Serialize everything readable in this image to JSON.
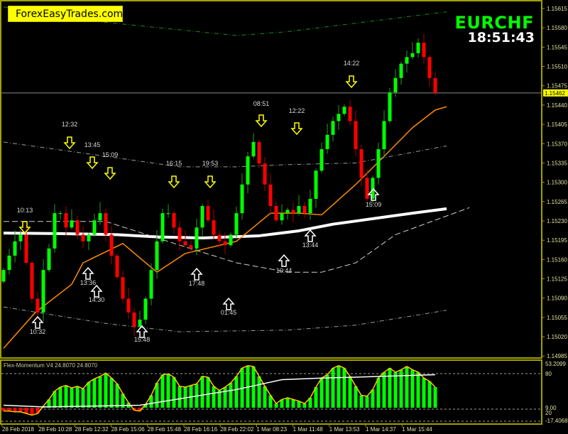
{
  "branding": {
    "label": "ForexEasyTrades.com"
  },
  "header": {
    "symbol": "EURCHF",
    "countdown": "18:51:43"
  },
  "colors": {
    "bull": "#00ff00",
    "bear": "#ff0000",
    "axis": "#a0a000",
    "ma_slow": "#ffffff",
    "ma_fast": "#ff8c00",
    "band_outer": "#1a8a1a",
    "band_inner": "#9a9a9a",
    "signal_down": "#ffff00",
    "signal_up": "#ffffff",
    "histogram_outline": "#ffcc00"
  },
  "chart_data": [
    {
      "type": "candlestick",
      "symbol": "EURCHF",
      "current_price": "1.15462",
      "ylim": [
        1.14985,
        1.15615
      ],
      "y_ticks": [
        "1.15615",
        "1.15580",
        "1.15545",
        "1.15510",
        "1.15475",
        "1.15440",
        "1.15405",
        "1.15370",
        "1.15335",
        "1.15300",
        "1.15265",
        "1.15230",
        "1.15195",
        "1.15160",
        "1.15125",
        "1.15090",
        "1.15055",
        "1.15020",
        "1.14985"
      ],
      "x_ticks": [
        "28 Feb 2018",
        "28 Feb 10:28",
        "28 Feb 12:32",
        "28 Feb 15:06",
        "28 Feb 15:48",
        "28 Feb 16:16",
        "28 Feb 22:02",
        "1 Mar 08:23",
        "1 Mar 11:48",
        "1 Mar 13:53",
        "1 Mar 14:37",
        "1 Mar 15:44"
      ],
      "first_open": 1.1512,
      "closes": [
        1.15141,
        1.15167,
        1.15193,
        1.15205,
        1.15154,
        1.15089,
        1.15064,
        1.15141,
        1.1518,
        1.15244,
        1.15244,
        1.15218,
        1.15231,
        1.15205,
        1.15193,
        1.15205,
        1.15231,
        1.15244,
        1.15205,
        1.15167,
        1.15128,
        1.15089,
        1.15064,
        1.15038,
        1.15051,
        1.15089,
        1.15141,
        1.15193,
        1.15244,
        1.15244,
        1.15218,
        1.15193,
        1.15186,
        1.1518,
        1.15218,
        1.15257,
        1.15231,
        1.15205,
        1.15193,
        1.15186,
        1.15205,
        1.15244,
        1.15296,
        1.15347,
        1.15373,
        1.15334,
        1.15296,
        1.15257,
        1.15231,
        1.15244,
        1.1525,
        1.15244,
        1.15257,
        1.15244,
        1.1527,
        1.15321,
        1.1536,
        1.15386,
        1.15411,
        1.15424,
        1.15437,
        1.15411,
        1.1536,
        1.15308,
        1.1527,
        1.15308,
        1.1536,
        1.15411,
        1.15463,
        1.15489,
        1.15515,
        1.15527,
        1.15534,
        1.15553,
        1.15527,
        1.15489,
        1.15462
      ],
      "lines": [
        {
          "role": "ma_slow",
          "points": [
            [
              0,
              1.15208
            ],
            [
              10,
              1.15207
            ],
            [
              20,
              1.15205
            ],
            [
              27,
              1.15201
            ],
            [
              35,
              1.15199
            ],
            [
              45,
              1.15203
            ],
            [
              52,
              1.15212
            ],
            [
              58,
              1.15224
            ],
            [
              65,
              1.15234
            ],
            [
              72,
              1.15244
            ],
            [
              78,
              1.15252
            ]
          ]
        },
        {
          "role": "ma_fast",
          "points": [
            [
              0,
              1.14999
            ],
            [
              5.6,
              1.15064
            ],
            [
              12,
              1.15115
            ],
            [
              14,
              1.15154
            ],
            [
              21,
              1.15189
            ],
            [
              27,
              1.15137
            ],
            [
              32,
              1.15171
            ],
            [
              41,
              1.15193
            ],
            [
              47,
              1.15244
            ],
            [
              52,
              1.15244
            ],
            [
              56,
              1.15241
            ],
            [
              62,
              1.15296
            ],
            [
              67,
              1.15347
            ],
            [
              72,
              1.15399
            ],
            [
              76,
              1.15431
            ],
            [
              78,
              1.15437
            ]
          ]
        },
        {
          "role": "band_outer_upper",
          "points": [
            [
              0,
              1.15618
            ],
            [
              16,
              1.15592
            ],
            [
              41,
              1.15566
            ],
            [
              50,
              1.15573
            ],
            [
              78,
              1.15609
            ]
          ]
        },
        {
          "role": "band_inner_upper",
          "points": [
            [
              0,
              1.15373
            ],
            [
              16,
              1.1535
            ],
            [
              31,
              1.15328
            ],
            [
              41,
              1.15328
            ],
            [
              50,
              1.15332
            ],
            [
              62,
              1.15335
            ],
            [
              78,
              1.15366
            ]
          ]
        },
        {
          "role": "band_mid",
          "points": [
            [
              0,
              1.15229
            ],
            [
              18,
              1.15229
            ],
            [
              31,
              1.15186
            ],
            [
              41,
              1.15154
            ],
            [
              50,
              1.15137
            ],
            [
              56,
              1.15137
            ],
            [
              62,
              1.15154
            ],
            [
              69,
              1.15205
            ],
            [
              82,
              1.15254
            ]
          ]
        },
        {
          "role": "band_lower",
          "points": [
            [
              0,
              1.15074
            ],
            [
              18,
              1.15044
            ],
            [
              31,
              1.15029
            ],
            [
              50,
              1.15032
            ],
            [
              62,
              1.15041
            ],
            [
              78,
              1.15068
            ]
          ]
        }
      ],
      "signals_down": [
        {
          "time": "10:13"
        },
        {
          "time": "12:32"
        },
        {
          "time": "13:45"
        },
        {
          "time": "15:09"
        },
        {
          "time": "16:15"
        },
        {
          "time": "19:53"
        },
        {
          "time": "08:51"
        },
        {
          "time": "12:22"
        },
        {
          "time": "14:22"
        }
      ],
      "signals_up": [
        {
          "time": "10:32"
        },
        {
          "time": "13:36"
        },
        {
          "time": "14:30"
        },
        {
          "time": "15:48"
        },
        {
          "time": "17:48"
        },
        {
          "time": "01:45"
        },
        {
          "time": "10:44"
        },
        {
          "time": "13:44"
        },
        {
          "time": "15:09"
        }
      ]
    },
    {
      "type": "bar",
      "title": "Flex-Momentum V4 24.8070 24.8070",
      "ylim": [
        -17.4068,
        53.2099
      ],
      "y_labels": [
        "53.2099",
        "80",
        "9.00",
        "20",
        "-17.4068"
      ],
      "values": [
        -4,
        -4,
        -5,
        -5,
        -7,
        -9,
        -7,
        2,
        10,
        20,
        25,
        27,
        24,
        26,
        23,
        31,
        35,
        38,
        42,
        36,
        29,
        17,
        6,
        -3,
        -4,
        4,
        15,
        30,
        40,
        41,
        37,
        26,
        25,
        27,
        29,
        38,
        37,
        26,
        21,
        25,
        30,
        38,
        48,
        51,
        50,
        38,
        26,
        15,
        5,
        10,
        12,
        10,
        8,
        5,
        12,
        25,
        36,
        40,
        48,
        51,
        48,
        38,
        26,
        15,
        14,
        22,
        36,
        43,
        48,
        43,
        46,
        50,
        46,
        43,
        36,
        32,
        25
      ],
      "signal_line": [
        [
          0,
          3
        ],
        [
          7,
          1
        ],
        [
          24,
          3
        ],
        [
          41,
          22
        ],
        [
          49,
          34
        ],
        [
          56,
          36
        ],
        [
          62,
          37
        ],
        [
          76,
          40
        ]
      ]
    }
  ]
}
